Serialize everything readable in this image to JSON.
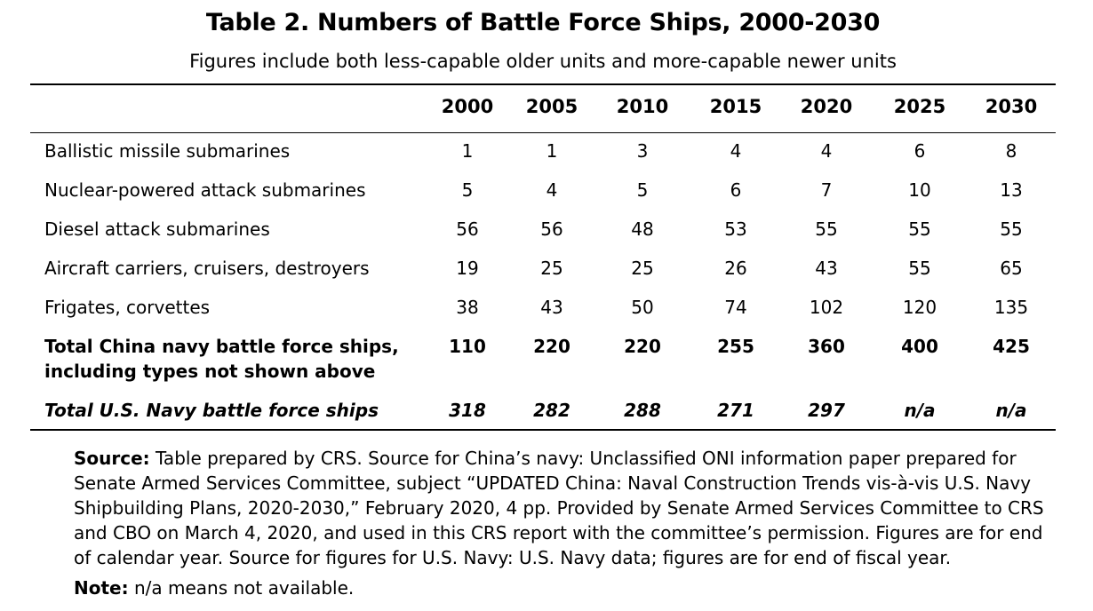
{
  "title": "Table 2. Numbers of Battle Force Ships, 2000-2030",
  "subtitle": "Figures include both less-capable older units and more-capable newer units",
  "years": [
    "2000",
    "2005",
    "2010",
    "2015",
    "2020",
    "2025",
    "2030"
  ],
  "rows": [
    {
      "label": "Ballistic missile submarines",
      "values": [
        "1",
        "1",
        "3",
        "4",
        "4",
        "6",
        "8"
      ]
    },
    {
      "label": "Nuclear-powered attack submarines",
      "values": [
        "5",
        "4",
        "5",
        "6",
        "7",
        "10",
        "13"
      ]
    },
    {
      "label": "Diesel attack submarines",
      "values": [
        "56",
        "56",
        "48",
        "53",
        "55",
        "55",
        "55"
      ]
    },
    {
      "label": "Aircraft carriers, cruisers, destroyers",
      "values": [
        "19",
        "25",
        "25",
        "26",
        "43",
        "55",
        "65"
      ]
    },
    {
      "label": "Frigates, corvettes",
      "values": [
        "38",
        "43",
        "50",
        "74",
        "102",
        "120",
        "135"
      ]
    }
  ],
  "total_china": {
    "label_line1": "Total China navy battle force ships,",
    "label_line2": "including types not shown above",
    "values": [
      "110",
      "220",
      "220",
      "255",
      "360",
      "400",
      "425"
    ]
  },
  "total_us": {
    "label": "Total U.S. Navy battle force ships",
    "values": [
      "318",
      "282",
      "288",
      "271",
      "297",
      "n/a",
      "n/a"
    ]
  },
  "source": {
    "key": "Source:",
    "text": " Table prepared by CRS. Source for China’s navy: Unclassified ONI information paper prepared for Senate Armed Services Committee, subject “UPDATED China: Naval Construction Trends vis-à-vis U.S. Navy Shipbuilding Plans, 2020-2030,” February 2020, 4 pp. Provided by Senate Armed Services Committee to CRS and CBO on March 4, 2020, and used in this CRS report with the committee’s permission. Figures are for end of calendar year. Source for figures for U.S. Navy: U.S. Navy data; figures are for end of fiscal year."
  },
  "note": {
    "key": "Note:",
    "text": " n/a means not available."
  }
}
